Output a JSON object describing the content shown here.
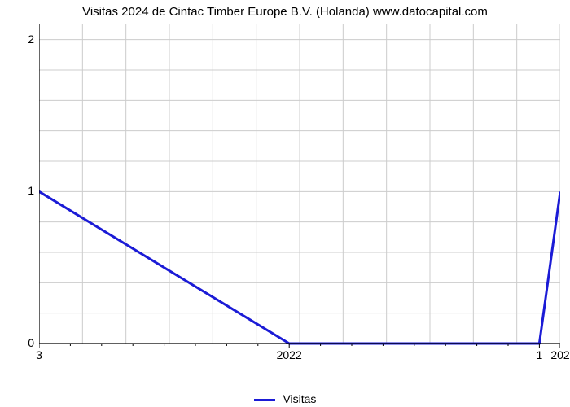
{
  "title": "Visitas 2024 de Cintac Timber Europe B.V. (Holanda) www.datocapital.com",
  "legend_label": "Visitas",
  "chart": {
    "type": "line",
    "background_color": "#ffffff",
    "grid_color": "#cccccc",
    "axis_color": "#000000",
    "line_color": "#1b1bd6",
    "line_width": 3,
    "tick_font_size": 14,
    "title_font_size": 15,
    "ylim_min": 0,
    "ylim_max": 2.1,
    "ytick_values": [
      0,
      1,
      2
    ],
    "ytick_minor_count": 5,
    "x_points": [
      "3",
      "2022",
      "1",
      "202"
    ],
    "x_numeric": [
      0.0,
      0.48,
      0.96,
      1.0
    ],
    "y_values": [
      1.0,
      0.0,
      0.0,
      1.0
    ],
    "x_minor_per_segment": 8,
    "x_label_visible_idx": [
      0,
      1,
      2,
      3
    ]
  }
}
